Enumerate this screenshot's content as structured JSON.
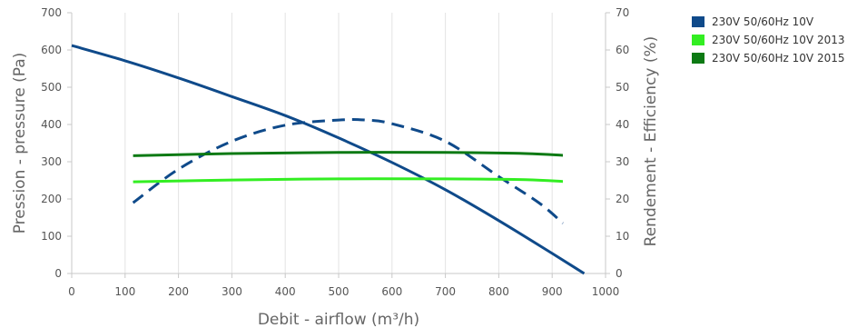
{
  "chart_data": {
    "type": "line",
    "xlabel": "Debit - airflow (m³/h)",
    "ylabel_left": "Pression - pressure (Pa)",
    "ylabel_right": "Rendement - Efficiency (%)",
    "xlim": [
      0,
      1000
    ],
    "ylim_left": [
      0,
      700
    ],
    "ylim_right": [
      0,
      70
    ],
    "x_ticks": [
      "0",
      "100",
      "200",
      "300",
      "400",
      "500",
      "600",
      "700",
      "800",
      "900",
      "1000"
    ],
    "y_left_ticks": [
      "0",
      "100",
      "200",
      "300",
      "400",
      "500",
      "600",
      "700"
    ],
    "y_right_ticks": [
      "0",
      "10",
      "20",
      "30",
      "40",
      "50",
      "60",
      "70"
    ],
    "grid": "vertical",
    "legend_position": "top-right",
    "series": [
      {
        "name": "230V 50/60Hz 10V",
        "axis": "left",
        "style": "solid",
        "color": "#0f4a8a",
        "points": [
          [
            0,
            612
          ],
          [
            100,
            571
          ],
          [
            200,
            525
          ],
          [
            300,
            475
          ],
          [
            400,
            424
          ],
          [
            500,
            364
          ],
          [
            600,
            298
          ],
          [
            700,
            225
          ],
          [
            800,
            142
          ],
          [
            900,
            54
          ],
          [
            960,
            0
          ]
        ]
      },
      {
        "name": "230V 50/60Hz 10V",
        "axis": "right",
        "style": "dashed",
        "color": "#0f4a8a",
        "points": [
          [
            115,
            19
          ],
          [
            200,
            28
          ],
          [
            300,
            35.5
          ],
          [
            400,
            39.8
          ],
          [
            500,
            41.2
          ],
          [
            550,
            41.2
          ],
          [
            600,
            40.2
          ],
          [
            700,
            35.5
          ],
          [
            800,
            26
          ],
          [
            875,
            19
          ],
          [
            920,
            13.5
          ]
        ]
      },
      {
        "name": "230V 50/60Hz 10V 2013",
        "axis": "right",
        "style": "solid",
        "color": "#33ee22",
        "points": [
          [
            115,
            24.6
          ],
          [
            300,
            25.1
          ],
          [
            500,
            25.4
          ],
          [
            700,
            25.4
          ],
          [
            850,
            25.2
          ],
          [
            920,
            24.7
          ]
        ]
      },
      {
        "name": "230V 50/60Hz 10V 2015",
        "axis": "right",
        "style": "solid",
        "color": "#0d7a14",
        "points": [
          [
            115,
            31.6
          ],
          [
            300,
            32.2
          ],
          [
            500,
            32.5
          ],
          [
            700,
            32.5
          ],
          [
            850,
            32.2
          ],
          [
            920,
            31.7
          ]
        ]
      }
    ],
    "legend": [
      {
        "label": "230V 50/60Hz 10V",
        "color": "#0f4a8a"
      },
      {
        "label": "230V 50/60Hz 10V 2013",
        "color": "#33ee22"
      },
      {
        "label": "230V 50/60Hz 10V 2015",
        "color": "#0d7a14"
      }
    ]
  }
}
